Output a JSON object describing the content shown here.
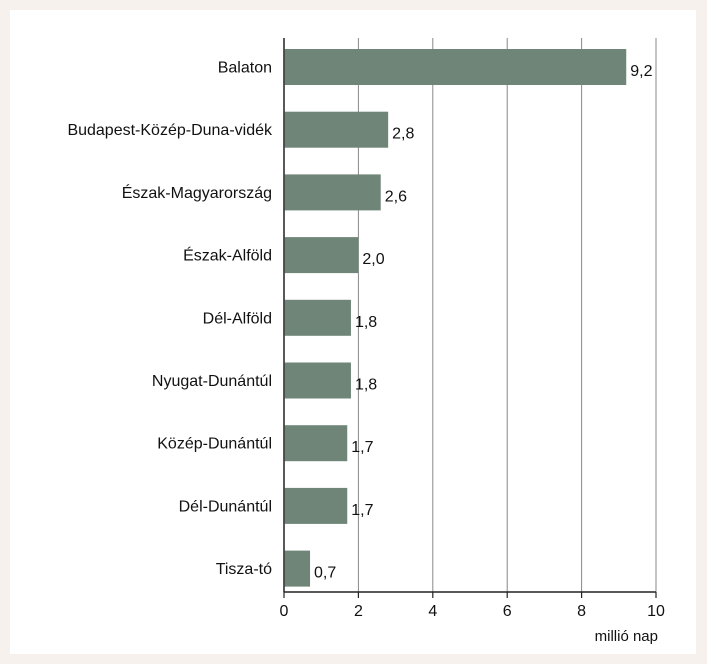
{
  "chart_data": {
    "type": "bar",
    "orientation": "horizontal",
    "categories": [
      "Balaton",
      "Budapest-Közép-Duna-vidék",
      "Észak-Magyarország",
      "Észak-Alföld",
      "Dél-Alföld",
      "Nyugat-Dunántúl",
      "Közép-Dunántúl",
      "Dél-Dunántúl",
      "Tisza-tó"
    ],
    "values": [
      9.2,
      2.8,
      2.6,
      2.0,
      1.8,
      1.8,
      1.7,
      1.7,
      0.7
    ],
    "value_labels": [
      "9,2",
      "2,8",
      "2,6",
      "2,0",
      "1,8",
      "1,8",
      "1,7",
      "1,7",
      "0,7"
    ],
    "xlim": [
      0,
      10
    ],
    "x_ticks": [
      0,
      2,
      4,
      6,
      8,
      10
    ],
    "xlabel": "millió nap",
    "grid": true,
    "bar_color": "#6f8577",
    "grid_color": "#888888",
    "background": "#f6f1ec"
  }
}
